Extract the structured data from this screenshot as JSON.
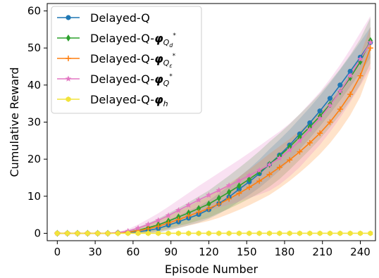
{
  "chart_data": {
    "type": "line",
    "xlabel": "Episode Number",
    "ylabel": "Cumulative Reward",
    "xlim": [
      -8,
      252
    ],
    "ylim": [
      -2,
      62
    ],
    "xticks": [
      0,
      30,
      60,
      90,
      120,
      150,
      180,
      210,
      240
    ],
    "yticks": [
      0,
      10,
      20,
      30,
      40,
      50,
      60
    ],
    "grid": false,
    "legend_position": "top-left",
    "series": [
      {
        "name": "Delayed-Q",
        "color": "#1f77b4",
        "marker": "circle",
        "x": [
          0,
          8,
          16,
          24,
          32,
          40,
          48,
          56,
          64,
          72,
          80,
          88,
          96,
          104,
          112,
          120,
          128,
          136,
          144,
          152,
          160,
          168,
          176,
          184,
          192,
          200,
          208,
          216,
          224,
          232,
          240,
          248
        ],
        "y": [
          0,
          0,
          0,
          0,
          0,
          0,
          0.1,
          0.2,
          0.4,
          0.8,
          1.3,
          2.2,
          3.1,
          4.1,
          5.1,
          6.4,
          8.0,
          9.8,
          11.9,
          13.9,
          16.1,
          18.6,
          21.1,
          23.8,
          26.8,
          29.8,
          33.0,
          36.4,
          40.0,
          43.7,
          47.5,
          51.5
        ],
        "band": 4.0
      },
      {
        "name": "Delayed-Q-φ_{Q_d^*}",
        "label_main": "Delayed-Q-",
        "label_phi": "φ",
        "label_sub": "Q",
        "label_subsub": "d",
        "label_sup": "*",
        "color": "#2ca02c",
        "marker": "diamond",
        "x": [
          0,
          8,
          16,
          24,
          32,
          40,
          48,
          56,
          64,
          72,
          80,
          88,
          96,
          104,
          112,
          120,
          128,
          136,
          144,
          152,
          160,
          168,
          176,
          184,
          192,
          200,
          208,
          216,
          224,
          232,
          240,
          248
        ],
        "y": [
          0,
          0,
          0,
          0,
          0,
          0,
          0.1,
          0.3,
          0.8,
          1.5,
          2.3,
          3.3,
          4.4,
          5.5,
          6.7,
          7.9,
          9.5,
          11.1,
          12.8,
          14.6,
          16.5,
          18.6,
          20.8,
          23.3,
          26.0,
          28.7,
          31.6,
          34.8,
          38.2,
          42.0,
          46.3,
          52.0
        ],
        "band": 6.0
      },
      {
        "name": "Delayed-Q-φ_{Q_ε^*}",
        "label_main": "Delayed-Q-",
        "label_phi": "φ",
        "label_sub": "Q",
        "label_subsub": "ε",
        "label_sup": "*",
        "color": "#ff7f0e",
        "marker": "plus",
        "x": [
          0,
          8,
          16,
          24,
          32,
          40,
          48,
          56,
          64,
          72,
          80,
          88,
          96,
          104,
          112,
          120,
          128,
          136,
          144,
          152,
          160,
          168,
          176,
          184,
          192,
          200,
          208,
          216,
          224,
          232,
          240,
          248
        ],
        "y": [
          0,
          0,
          0,
          0,
          0,
          0,
          0.1,
          0.3,
          0.7,
          1.2,
          1.9,
          2.8,
          3.7,
          4.7,
          5.7,
          6.7,
          7.9,
          9.3,
          10.8,
          12.4,
          14.1,
          15.9,
          17.8,
          19.8,
          22.0,
          24.4,
          27.0,
          30.0,
          33.5,
          37.5,
          42.5,
          50.0
        ],
        "band": 5.5
      },
      {
        "name": "Delayed-Q-φ_{Q^*}",
        "label_main": "Delayed-Q-",
        "label_phi": "φ",
        "label_sub": "Q",
        "label_subsub": "",
        "label_sup": "*",
        "color": "#e377c2",
        "marker": "star",
        "x": [
          0,
          8,
          16,
          24,
          32,
          40,
          48,
          56,
          64,
          72,
          80,
          88,
          96,
          104,
          112,
          120,
          128,
          136,
          144,
          152,
          160,
          168,
          176,
          184,
          192,
          200,
          208,
          216,
          224,
          232,
          240,
          248
        ],
        "y": [
          0,
          0,
          0,
          0,
          0,
          0,
          0.2,
          0.6,
          1.4,
          2.4,
          3.5,
          4.8,
          6.2,
          7.6,
          9.0,
          10.3,
          11.6,
          12.9,
          14.2,
          15.6,
          17.0,
          18.5,
          20.3,
          22.5,
          25.0,
          28.0,
          31.0,
          34.5,
          38.3,
          42.5,
          47.0,
          51.5
        ],
        "band": 7.0
      },
      {
        "name": "Delayed-Q-φ_h",
        "label_main": "Delayed-Q-",
        "label_phi": "φ",
        "label_sub": "h",
        "label_subsub": "",
        "label_sup": "",
        "color": "#f2e33a",
        "marker": "hexagon",
        "x": [
          0,
          8,
          16,
          24,
          32,
          40,
          48,
          56,
          64,
          72,
          80,
          88,
          96,
          104,
          112,
          120,
          128,
          136,
          144,
          152,
          160,
          168,
          176,
          184,
          192,
          200,
          208,
          216,
          224,
          232,
          240,
          248
        ],
        "y": [
          0,
          0,
          0,
          0,
          0,
          0,
          0,
          0,
          0,
          0,
          0,
          0,
          0,
          0,
          0,
          0,
          0,
          0,
          0,
          0,
          0,
          0,
          0,
          0,
          0,
          0,
          0,
          0,
          0,
          0,
          0,
          0
        ],
        "band": 0
      }
    ]
  }
}
